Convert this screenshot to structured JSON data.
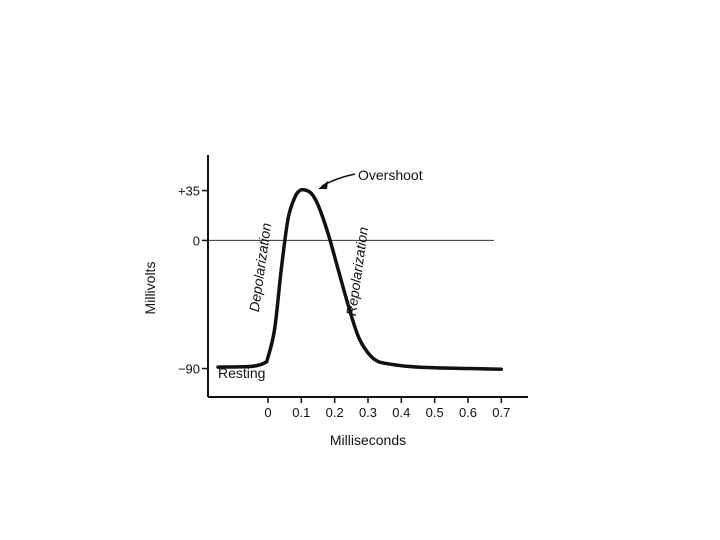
{
  "chart_data": {
    "type": "line",
    "xlabel": "Milliseconds",
    "ylabel": "Millivolts",
    "x_ticks": [
      {
        "value": 0,
        "label": "0"
      },
      {
        "value": 0.1,
        "label": "0.1"
      },
      {
        "value": 0.2,
        "label": "0.2"
      },
      {
        "value": 0.3,
        "label": "0.3"
      },
      {
        "value": 0.4,
        "label": "0.4"
      },
      {
        "value": 0.5,
        "label": "0.5"
      },
      {
        "value": 0.6,
        "label": "0.6"
      },
      {
        "value": 0.7,
        "label": "0.7"
      }
    ],
    "y_ticks": [
      {
        "value": 35,
        "label": "+35"
      },
      {
        "value": 0,
        "label": "0"
      },
      {
        "value": -90,
        "label": "−90"
      }
    ],
    "xlim": [
      -0.18,
      0.78
    ],
    "ylim": [
      -110,
      60
    ],
    "zero_line": true,
    "series": [
      {
        "x": [
          -0.15,
          -0.05,
          -0.01,
          0.0,
          0.02,
          0.04,
          0.06,
          0.08,
          0.095,
          0.11,
          0.13,
          0.15,
          0.18,
          0.21,
          0.24,
          0.27,
          0.3,
          0.33,
          0.37,
          0.42,
          0.5,
          0.6,
          0.7
        ],
        "y": [
          -89,
          -88.5,
          -86,
          -82,
          -62,
          -20,
          15,
          30,
          35,
          35.5,
          33,
          25,
          5,
          -20,
          -45,
          -67,
          -79,
          -85,
          -87,
          -88.5,
          -89.5,
          -90,
          -90.5
        ]
      }
    ],
    "annotations": {
      "overshoot": "Overshoot",
      "depolarization": "Depolarization",
      "repolarization": "Repolarization",
      "resting": "Resting"
    }
  }
}
